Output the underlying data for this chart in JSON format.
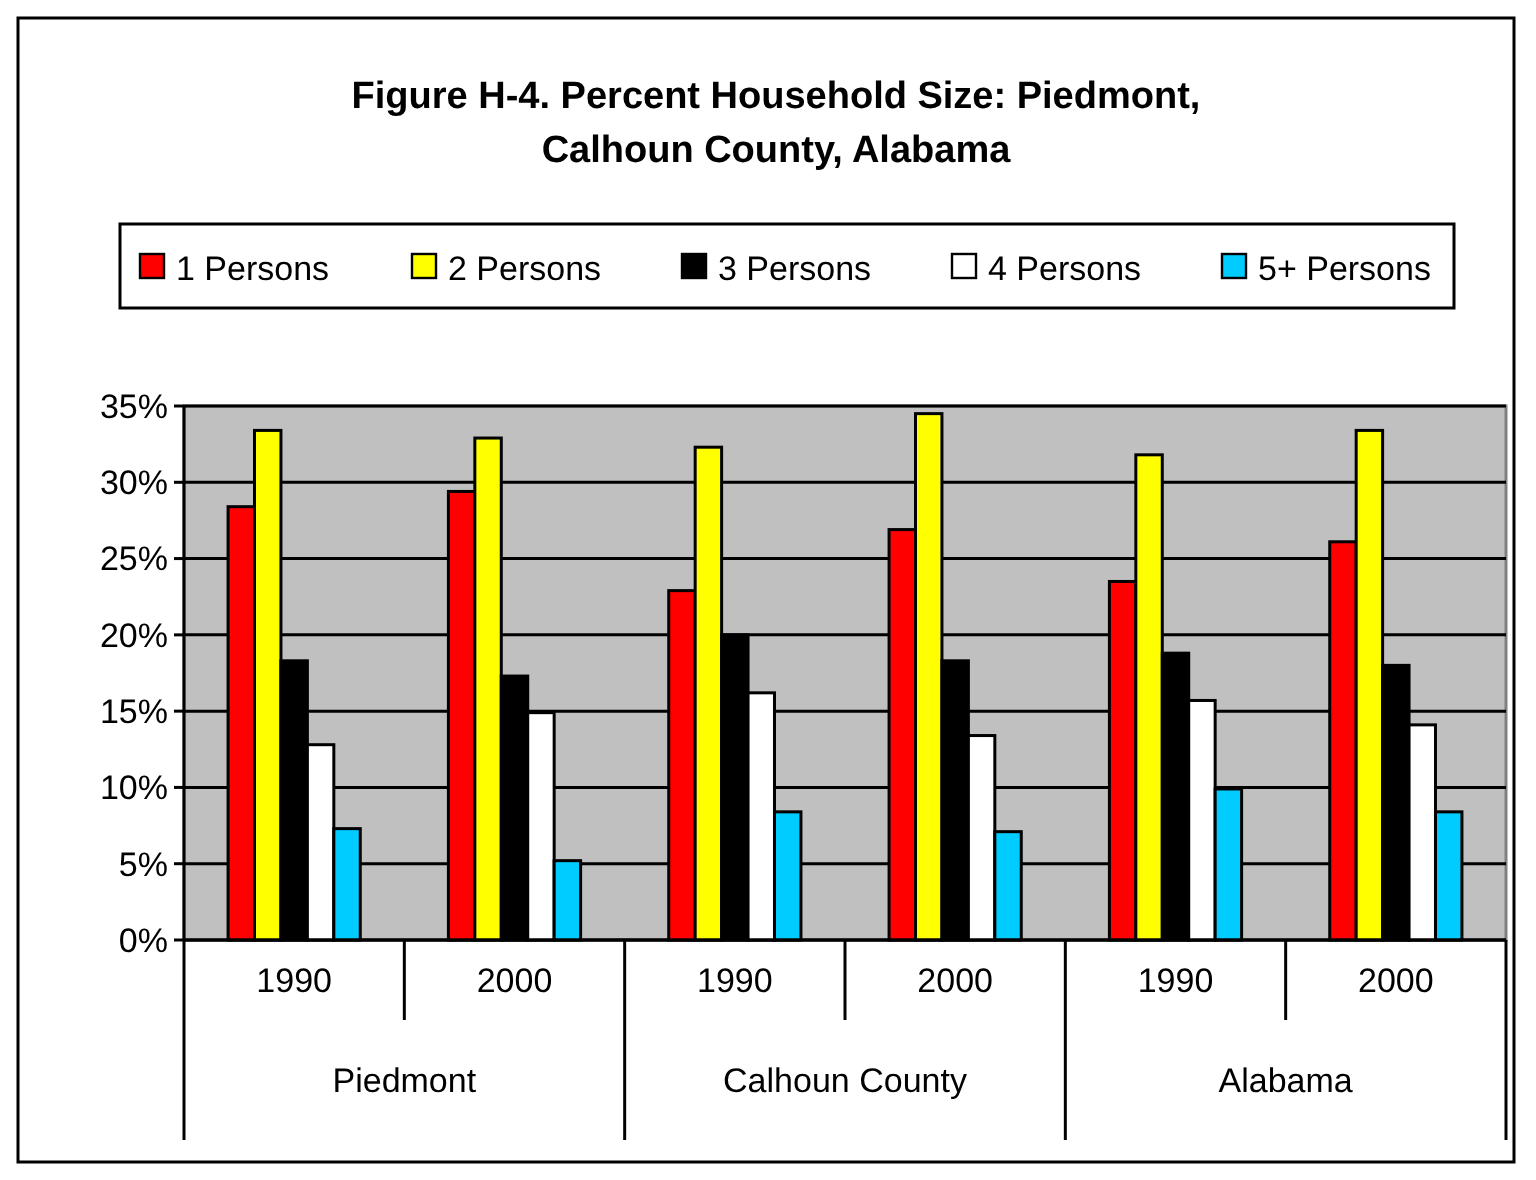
{
  "chart_data": {
    "type": "bar",
    "title": "Figure H-4. Percent Household Size: Piedmont, Calhoun County, Alabama",
    "categories": [
      "1990",
      "2000",
      "1990",
      "2000",
      "1990",
      "2000"
    ],
    "annotations": [
      "Piedmont",
      "Calhoun County",
      "Alabama"
    ],
    "series": [
      {
        "name": "1 Persons",
        "color": "#ff0000",
        "values": [
          28.4,
          29.4,
          22.9,
          26.9,
          23.5,
          26.1
        ]
      },
      {
        "name": "2 Persons",
        "color": "#ffff00",
        "values": [
          33.4,
          32.9,
          32.3,
          34.5,
          31.8,
          33.4
        ]
      },
      {
        "name": "3 Persons",
        "color": "#000000",
        "values": [
          18.3,
          17.3,
          20.0,
          18.3,
          18.8,
          18.0
        ]
      },
      {
        "name": "4 Persons",
        "color": "#ffffff",
        "values": [
          12.8,
          14.9,
          16.2,
          13.4,
          15.7,
          14.1
        ]
      },
      {
        "name": "5+ Persons",
        "color": "#00ccff",
        "values": [
          7.3,
          5.2,
          8.4,
          7.1,
          9.9,
          8.4
        ]
      }
    ],
    "ylim": [
      0,
      35
    ],
    "yticks": [
      {
        "value": 0,
        "label": "0%"
      },
      {
        "value": 5,
        "label": "5%"
      },
      {
        "value": 10,
        "label": "10%"
      },
      {
        "value": 15,
        "label": "15%"
      },
      {
        "value": 20,
        "label": "20%"
      },
      {
        "value": 25,
        "label": "25%"
      },
      {
        "value": 30,
        "label": "30%"
      },
      {
        "value": 35,
        "label": "35%"
      }
    ],
    "grid": "y",
    "legend": "top"
  }
}
